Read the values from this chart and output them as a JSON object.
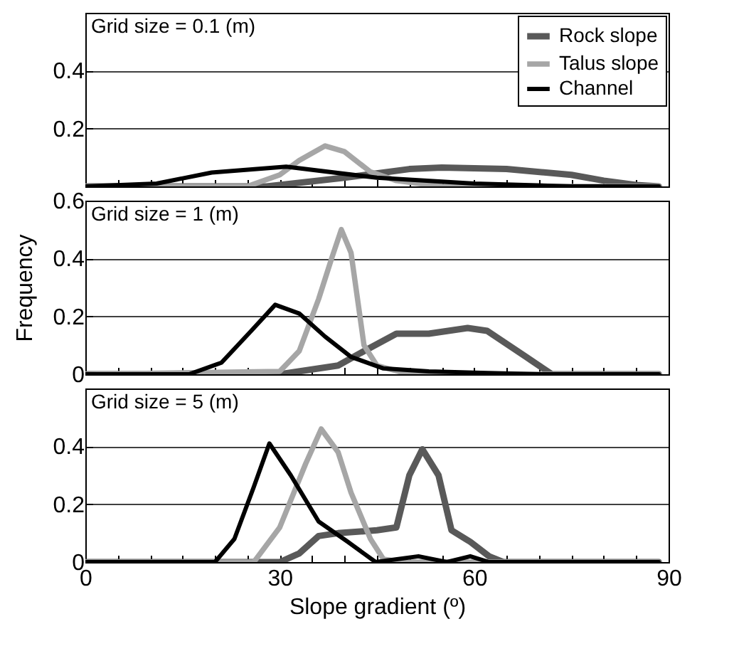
{
  "chart_data": [
    {
      "type": "line",
      "title": "Grid size = 0.1 (m)",
      "xlim": [
        0,
        90
      ],
      "xticks": [
        0,
        {
          "value": 5,
          "label": null
        },
        {
          "value": 10,
          "label": null
        },
        {
          "value": 15,
          "label": null
        },
        {
          "value": 20,
          "label": null
        },
        {
          "value": 25,
          "label": null
        },
        30,
        {
          "value": 35,
          "label": null
        },
        {
          "value": 40,
          "label": null
        },
        {
          "value": 45,
          "label": null
        },
        {
          "value": 50,
          "label": null
        },
        {
          "value": 55,
          "label": null
        },
        60,
        {
          "value": 65,
          "label": null
        },
        {
          "value": 70,
          "label": null
        },
        {
          "value": 75,
          "label": null
        },
        {
          "value": 80,
          "label": null
        },
        {
          "value": 85,
          "label": null
        },
        90
      ],
      "ylim": [
        0,
        0.6
      ],
      "yticks": [
        0.2,
        0.4
      ],
      "grid": "y",
      "legend": "top right",
      "tick_labels": "y",
      "series": [
        {
          "name": "Rock slope",
          "color": "#595959",
          "x": [
            0,
            28,
            40,
            50,
            55,
            65,
            75,
            80,
            85,
            88.5
          ],
          "values": [
            0,
            0,
            0.03,
            0.06,
            0.065,
            0.06,
            0.04,
            0.02,
            0.005,
            0
          ]
        },
        {
          "name": "Talus slope",
          "color": "#a6a6a6",
          "x": [
            0,
            25,
            30,
            33,
            37,
            40,
            44,
            48,
            55,
            88.5
          ],
          "values": [
            0,
            0,
            0.04,
            0.09,
            0.14,
            0.12,
            0.05,
            0.02,
            0,
            0
          ]
        },
        {
          "name": "Channel",
          "color": "#000000",
          "x": [
            0,
            11,
            19.5,
            31,
            45,
            60,
            75,
            88.5
          ],
          "values": [
            0,
            0.01,
            0.048,
            0.068,
            0.03,
            0.01,
            0,
            0
          ]
        }
      ]
    },
    {
      "type": "line",
      "title": "Grid size = 1 (m)",
      "ylabel": "Frequency",
      "xlim": [
        0,
        90
      ],
      "xticks": [
        0,
        {
          "value": 5,
          "label": null
        },
        {
          "value": 10,
          "label": null
        },
        {
          "value": 15,
          "label": null
        },
        {
          "value": 20,
          "label": null
        },
        {
          "value": 25,
          "label": null
        },
        30,
        {
          "value": 35,
          "label": null
        },
        {
          "value": 40,
          "label": null
        },
        {
          "value": 45,
          "label": null
        },
        {
          "value": 50,
          "label": null
        },
        {
          "value": 55,
          "label": null
        },
        60,
        {
          "value": 65,
          "label": null
        },
        {
          "value": 70,
          "label": null
        },
        {
          "value": 75,
          "label": null
        },
        {
          "value": 80,
          "label": null
        },
        {
          "value": 85,
          "label": null
        },
        90
      ],
      "ylim": [
        0,
        0.6
      ],
      "yticks": [
        0,
        0.2,
        0.4,
        0.6
      ],
      "grid": "y",
      "tick_labels": "y",
      "series": [
        {
          "color": "#595959",
          "x": [
            0,
            30,
            39,
            43,
            48,
            53,
            59,
            62,
            68,
            72,
            88.5
          ],
          "values": [
            0,
            0,
            0.03,
            0.08,
            0.14,
            0.14,
            0.16,
            0.15,
            0.06,
            0,
            0
          ]
        },
        {
          "color": "#a6a6a6",
          "x": [
            0,
            30,
            33,
            36,
            38,
            39.5,
            41,
            43,
            45,
            50,
            88.5
          ],
          "values": [
            0,
            0.01,
            0.08,
            0.26,
            0.4,
            0.5,
            0.42,
            0.1,
            0.03,
            0,
            0
          ]
        },
        {
          "color": "#000000",
          "x": [
            0,
            16,
            21,
            25.6,
            29.3,
            33,
            37,
            41,
            46,
            53,
            61,
            70,
            88.5
          ],
          "values": [
            0,
            0,
            0.04,
            0.15,
            0.24,
            0.21,
            0.13,
            0.06,
            0.02,
            0.01,
            0.005,
            0,
            0
          ]
        }
      ]
    },
    {
      "type": "line",
      "title": "Grid size = 5 (m)",
      "xlabel": "Slope gradient (º)",
      "xlim": [
        0,
        90
      ],
      "xticks": [
        0,
        {
          "value": 5,
          "label": null
        },
        {
          "value": 10,
          "label": null
        },
        {
          "value": 15,
          "label": null
        },
        {
          "value": 20,
          "label": null
        },
        {
          "value": 25,
          "label": null
        },
        30,
        {
          "value": 35,
          "label": null
        },
        {
          "value": 40,
          "label": null
        },
        {
          "value": 45,
          "label": null
        },
        {
          "value": 50,
          "label": null
        },
        {
          "value": 55,
          "label": null
        },
        60,
        {
          "value": 65,
          "label": null
        },
        {
          "value": 70,
          "label": null
        },
        {
          "value": 75,
          "label": null
        },
        {
          "value": 80,
          "label": null
        },
        {
          "value": 85,
          "label": null
        },
        90
      ],
      "ylim": [
        0,
        0.6
      ],
      "yticks": [
        0,
        0.2,
        0.4
      ],
      "grid": "y",
      "series": [
        {
          "color": "#595959",
          "x": [
            0,
            30,
            33,
            36,
            39,
            45,
            48,
            50,
            52,
            54.5,
            56.5,
            59.4,
            62.3,
            64.5,
            88.5
          ],
          "values": [
            0,
            0,
            0.03,
            0.09,
            0.1,
            0.11,
            0.12,
            0.3,
            0.39,
            0.3,
            0.11,
            0.07,
            0.02,
            0,
            0
          ]
        },
        {
          "color": "#a6a6a6",
          "x": [
            0,
            26,
            30,
            34,
            36.4,
            39,
            41,
            44,
            46,
            49,
            88.5
          ],
          "values": [
            0,
            0,
            0.12,
            0.34,
            0.46,
            0.38,
            0.24,
            0.08,
            0.01,
            0,
            0
          ]
        },
        {
          "color": "#000000",
          "x": [
            0,
            20,
            23,
            26,
            28.4,
            31.7,
            36,
            40.5,
            44.8,
            51.4,
            55.8,
            59.4,
            62.3,
            88.5
          ],
          "values": [
            0,
            0,
            0.08,
            0.26,
            0.41,
            0.3,
            0.14,
            0.07,
            0,
            0.02,
            0,
            0.02,
            0,
            0
          ]
        }
      ]
    }
  ]
}
